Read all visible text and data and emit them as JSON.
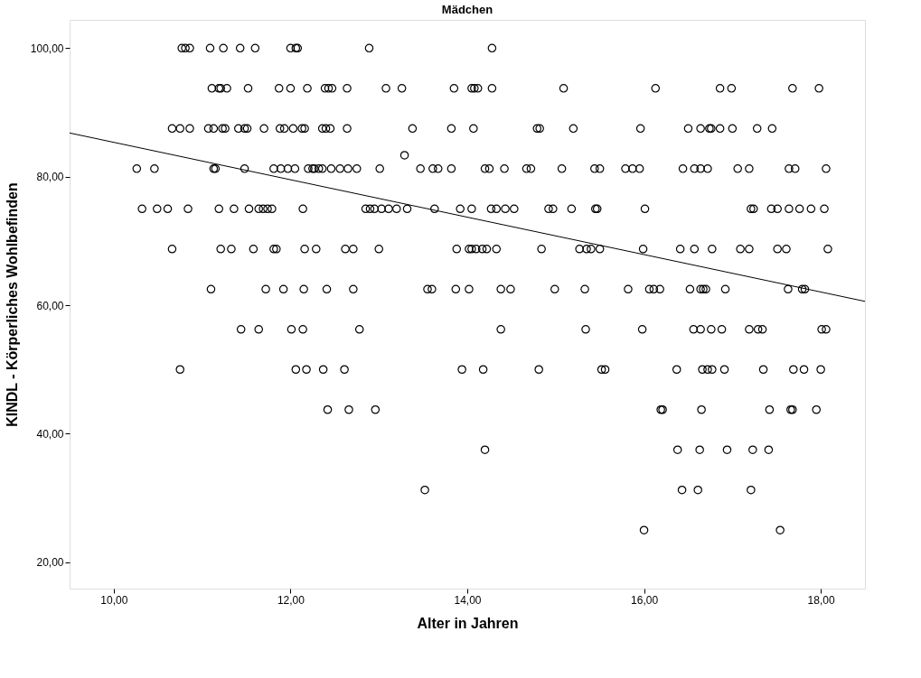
{
  "chart_data": {
    "type": "scatter",
    "title": "Mädchen",
    "xlabel": "Alter in Jahren",
    "ylabel": "KINDL -  Körperliches Wohlbefinden",
    "xlim": [
      9.5,
      18.5
    ],
    "ylim": [
      15.9,
      104.4
    ],
    "xticks": [
      {
        "value": 10,
        "label": "10,00"
      },
      {
        "value": 12,
        "label": "12,00"
      },
      {
        "value": 14,
        "label": "14,00"
      },
      {
        "value": 16,
        "label": "16,00"
      },
      {
        "value": 18,
        "label": "18,00"
      }
    ],
    "yticks": [
      {
        "value": 20,
        "label": "20,00"
      },
      {
        "value": 40,
        "label": "40,00"
      },
      {
        "value": 60,
        "label": "60,00"
      },
      {
        "value": 80,
        "label": "80,00"
      },
      {
        "value": 100,
        "label": "100,00"
      }
    ],
    "grid": false,
    "marker": "circle",
    "series": [
      {
        "color": "#000000",
        "x": [
          10.77,
          10.81,
          10.86,
          11.09,
          11.24,
          11.43,
          11.6,
          12.0,
          12.06,
          12.08,
          12.89,
          14.28
        ],
        "values": [
          100,
          100,
          100,
          100,
          100,
          100,
          100,
          100,
          100,
          100,
          100,
          100
        ]
      },
      {
        "color": "#000000",
        "x": [
          11.11,
          11.19,
          11.21,
          11.28,
          11.52,
          11.87,
          12.0,
          12.19,
          12.39,
          12.43,
          12.47,
          12.64,
          13.08,
          13.26,
          13.85,
          14.05,
          14.08,
          14.12,
          14.28,
          15.09,
          16.13,
          16.86,
          16.99,
          17.68,
          17.98
        ],
        "values": [
          93.75,
          93.75,
          93.75,
          93.75,
          93.75,
          93.75,
          93.75,
          93.75,
          93.75,
          93.75,
          93.75,
          93.75,
          93.75,
          93.75,
          93.75,
          93.75,
          93.75,
          93.75,
          93.75,
          93.75,
          93.75,
          93.75,
          93.75,
          93.75,
          93.75
        ]
      },
      {
        "color": "#000000",
        "x": [
          10.66,
          10.75,
          10.86,
          11.07,
          11.13,
          11.23,
          11.26,
          11.41,
          11.48,
          11.51,
          11.7,
          11.88,
          11.93,
          12.03,
          12.13,
          12.16,
          12.36,
          12.4,
          12.45,
          12.64,
          13.38,
          13.82,
          14.07,
          14.79,
          14.82,
          15.2,
          15.96,
          16.5,
          16.64,
          16.74,
          16.76,
          16.86,
          17.0,
          17.28,
          17.45
        ],
        "values": [
          87.5,
          87.5,
          87.5,
          87.5,
          87.5,
          87.5,
          87.5,
          87.5,
          87.5,
          87.5,
          87.5,
          87.5,
          87.5,
          87.5,
          87.5,
          87.5,
          87.5,
          87.5,
          87.5,
          87.5,
          87.5,
          87.5,
          87.5,
          87.5,
          87.5,
          87.5,
          87.5,
          87.5,
          87.5,
          87.5,
          87.5,
          87.5,
          87.5,
          87.5,
          87.5
        ]
      },
      {
        "color": "#000000",
        "x": [
          13.29
        ],
        "values": [
          83.33
        ]
      },
      {
        "color": "#000000",
        "x": [
          10.26,
          10.46,
          11.13,
          11.15,
          11.48,
          11.81,
          11.89,
          11.97,
          12.05,
          12.2,
          12.25,
          12.27,
          12.32,
          12.36,
          12.46,
          12.56,
          12.65,
          12.75,
          13.01,
          13.47,
          13.61,
          13.67,
          13.82,
          14.2,
          14.25,
          14.42,
          14.67,
          14.72,
          15.07,
          15.44,
          15.5,
          15.79,
          15.87,
          15.95,
          16.44,
          16.57,
          16.64,
          16.72,
          17.06,
          17.19,
          17.64,
          17.71,
          18.06
        ],
        "values": [
          81.25,
          81.25,
          81.25,
          81.25,
          81.25,
          81.25,
          81.25,
          81.25,
          81.25,
          81.25,
          81.25,
          81.25,
          81.25,
          81.25,
          81.25,
          81.25,
          81.25,
          81.25,
          81.25,
          81.25,
          81.25,
          81.25,
          81.25,
          81.25,
          81.25,
          81.25,
          81.25,
          81.25,
          81.25,
          81.25,
          81.25,
          81.25,
          81.25,
          81.25,
          81.25,
          81.25,
          81.25,
          81.25,
          81.25,
          81.25,
          81.25,
          81.25,
          81.25
        ]
      },
      {
        "color": "#000000",
        "x": [
          10.32,
          10.49,
          10.61,
          10.84,
          11.19,
          11.36,
          11.53,
          11.64,
          11.69,
          11.74,
          11.79,
          12.14,
          12.85,
          12.9,
          12.95,
          13.03,
          13.11,
          13.2,
          13.32,
          13.63,
          13.92,
          14.05,
          14.27,
          14.33,
          14.43,
          14.53,
          14.92,
          14.97,
          15.18,
          15.45,
          15.47,
          16.01,
          17.21,
          17.24,
          17.44,
          17.51,
          17.64,
          17.76,
          17.89,
          18.04
        ],
        "values": [
          75,
          75,
          75,
          75,
          75,
          75,
          75,
          75,
          75,
          75,
          75,
          75,
          75,
          75,
          75,
          75,
          75,
          75,
          75,
          75,
          75,
          75,
          75,
          75,
          75,
          75,
          75,
          75,
          75,
          75,
          75,
          75,
          75,
          75,
          75,
          75,
          75,
          75,
          75,
          75
        ]
      },
      {
        "color": "#000000",
        "x": [
          10.66,
          11.21,
          11.33,
          11.58,
          11.81,
          11.84,
          12.16,
          12.29,
          12.62,
          12.71,
          13.0,
          13.88,
          14.02,
          14.05,
          14.1,
          14.17,
          14.22,
          14.33,
          14.84,
          15.27,
          15.35,
          15.4,
          15.5,
          15.99,
          16.41,
          16.57,
          16.77,
          17.09,
          17.19,
          17.51,
          17.61,
          18.08
        ],
        "values": [
          68.75,
          68.75,
          68.75,
          68.75,
          68.75,
          68.75,
          68.75,
          68.75,
          68.75,
          68.75,
          68.75,
          68.75,
          68.75,
          68.75,
          68.75,
          68.75,
          68.75,
          68.75,
          68.75,
          68.75,
          68.75,
          68.75,
          68.75,
          68.75,
          68.75,
          68.75,
          68.75,
          68.75,
          68.75,
          68.75,
          68.75,
          68.75
        ]
      },
      {
        "color": "#000000",
        "x": [
          11.1,
          11.72,
          11.92,
          12.15,
          12.41,
          12.71,
          13.55,
          13.6,
          13.87,
          14.02,
          14.38,
          14.49,
          14.99,
          15.33,
          15.82,
          16.06,
          16.11,
          16.18,
          16.52,
          16.64,
          16.67,
          16.7,
          16.92,
          17.63,
          17.79,
          17.82
        ],
        "values": [
          62.5,
          62.5,
          62.5,
          62.5,
          62.5,
          62.5,
          62.5,
          62.5,
          62.5,
          62.5,
          62.5,
          62.5,
          62.5,
          62.5,
          62.5,
          62.5,
          62.5,
          62.5,
          62.5,
          62.5,
          62.5,
          62.5,
          62.5,
          62.5,
          62.5,
          62.5
        ]
      },
      {
        "color": "#000000",
        "x": [
          11.44,
          11.64,
          12.01,
          12.14,
          12.78,
          14.38,
          15.34,
          15.98,
          16.56,
          16.64,
          16.76,
          16.88,
          17.19,
          17.29,
          17.34,
          18.01,
          18.06
        ],
        "values": [
          56.25,
          56.25,
          56.25,
          56.25,
          56.25,
          56.25,
          56.25,
          56.25,
          56.25,
          56.25,
          56.25,
          56.25,
          56.25,
          56.25,
          56.25,
          56.25,
          56.25
        ]
      },
      {
        "color": "#000000",
        "x": [
          10.75,
          12.06,
          12.18,
          12.37,
          12.61,
          13.94,
          14.18,
          14.81,
          15.52,
          15.56,
          16.37,
          16.66,
          16.72,
          16.77,
          16.91,
          17.35,
          17.69,
          17.81,
          18.0
        ],
        "values": [
          50,
          50,
          50,
          50,
          50,
          50,
          50,
          50,
          50,
          50,
          50,
          50,
          50,
          50,
          50,
          50,
          50,
          50,
          50
        ]
      },
      {
        "color": "#000000",
        "x": [
          12.42,
          12.66,
          12.96,
          16.19,
          16.21,
          16.65,
          17.42,
          17.66,
          17.68,
          17.95
        ],
        "values": [
          43.75,
          43.75,
          43.75,
          43.75,
          43.75,
          43.75,
          43.75,
          43.75,
          43.75,
          43.75
        ]
      },
      {
        "color": "#000000",
        "x": [
          14.2,
          16.38,
          16.63,
          16.94,
          17.23,
          17.41
        ],
        "values": [
          37.5,
          37.5,
          37.5,
          37.5,
          37.5,
          37.5
        ]
      },
      {
        "color": "#000000",
        "x": [
          13.52,
          16.43,
          16.61,
          17.21
        ],
        "values": [
          31.25,
          31.25,
          31.25,
          31.25
        ]
      },
      {
        "color": "#000000",
        "x": [
          16.0,
          17.54
        ],
        "values": [
          25,
          25
        ]
      },
      {
        "type": "line",
        "color": "#000000",
        "line_style": "solid",
        "marker": "none",
        "x": [
          9.5,
          18.5
        ],
        "values": [
          86.8,
          60.6
        ]
      }
    ]
  }
}
